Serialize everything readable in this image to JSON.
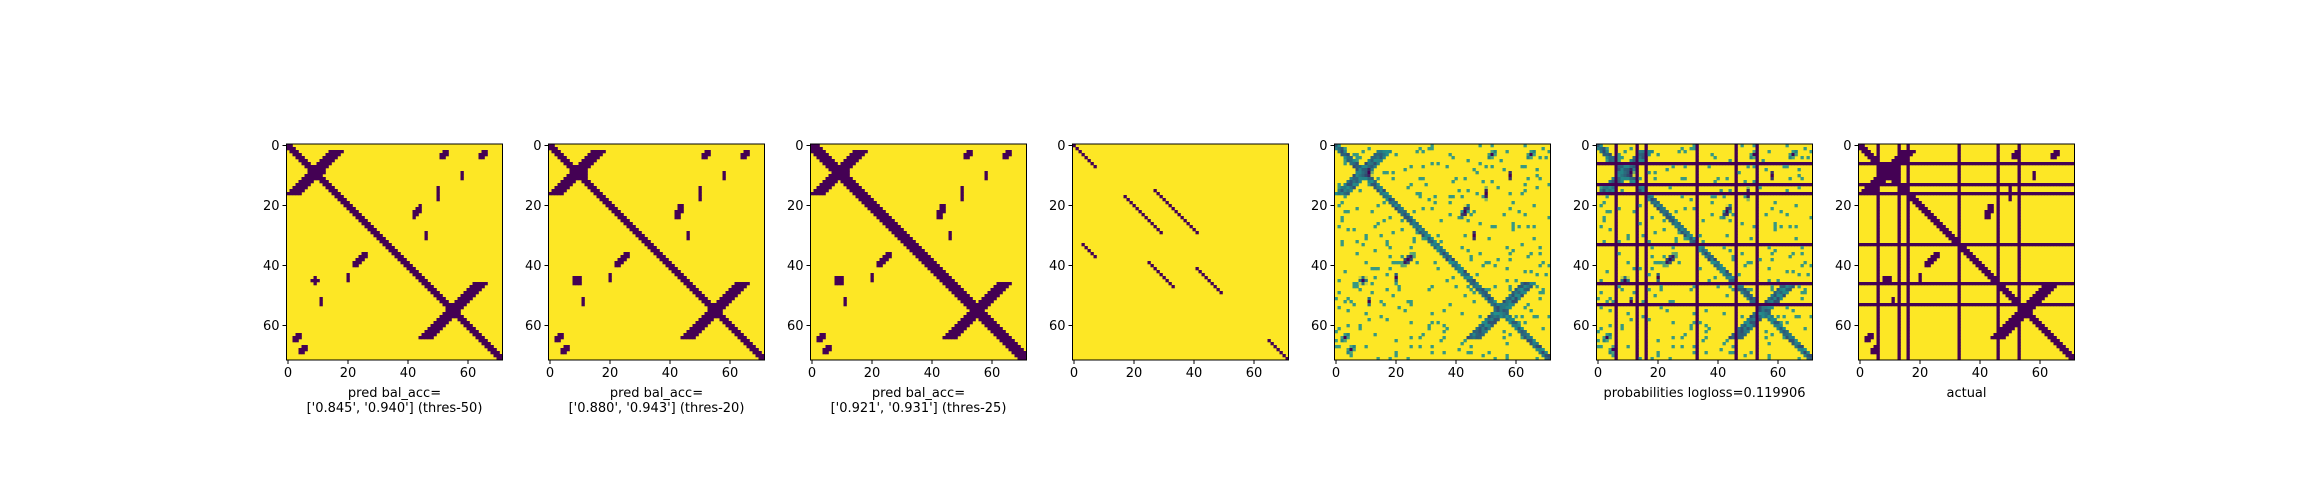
{
  "colors": {
    "low": "#440154",
    "mid": "#21908c",
    "high": "#fde725",
    "axis": "#000000"
  },
  "chart_data": [
    {
      "type": "heatmap",
      "map": "contact_threshold",
      "title": "",
      "caption": [
        "pred bal_acc=",
        "['0.845', '0.940'] (thres-50)"
      ],
      "xticks": [
        "0",
        "20",
        "40",
        "60"
      ],
      "yticks": [
        "0",
        "20",
        "40",
        "60"
      ],
      "xlim": [
        0,
        72
      ],
      "ylim": [
        72,
        0
      ],
      "grid": false
    },
    {
      "type": "heatmap",
      "map": "contact_threshold_low",
      "title": "",
      "caption": [
        "pred bal_acc=",
        "['0.880', '0.943'] (thres-20)"
      ],
      "xticks": [
        "0",
        "20",
        "40",
        "60"
      ],
      "yticks": [
        "0",
        "20",
        "40",
        "60"
      ],
      "xlim": [
        0,
        72
      ],
      "ylim": [
        72,
        0
      ],
      "grid": false
    },
    {
      "type": "heatmap",
      "map": "contact_threshold_mid",
      "title": "",
      "caption": [
        "pred bal_acc=",
        "['0.921', '0.931'] (thres-25)"
      ],
      "xticks": [
        "0",
        "20",
        "40",
        "60"
      ],
      "yticks": [
        "0",
        "20",
        "40",
        "60"
      ],
      "xlim": [
        0,
        72
      ],
      "ylim": [
        72,
        0
      ],
      "grid": false
    },
    {
      "type": "heatmap",
      "map": "sparse_diagonal",
      "title": "",
      "caption": [],
      "xticks": [
        "0",
        "20",
        "40",
        "60"
      ],
      "yticks": [
        "0",
        "20",
        "40",
        "60"
      ],
      "xlim": [
        0,
        72
      ],
      "ylim": [
        72,
        0
      ],
      "grid": false
    },
    {
      "type": "heatmap",
      "map": "probabilities",
      "title": "",
      "caption": [],
      "xticks": [
        "0",
        "20",
        "40",
        "60"
      ],
      "yticks": [
        "0",
        "20",
        "40",
        "60"
      ],
      "xlim": [
        0,
        72
      ],
      "ylim": [
        72,
        0
      ],
      "grid": false
    },
    {
      "type": "heatmap",
      "map": "probabilities_masked",
      "title": "",
      "caption": [
        "probabilities logloss=0.119906"
      ],
      "xticks": [
        "0",
        "20",
        "40",
        "60"
      ],
      "yticks": [
        "0",
        "20",
        "40",
        "60"
      ],
      "xlim": [
        0,
        72
      ],
      "ylim": [
        72,
        0
      ],
      "grid": false
    },
    {
      "type": "heatmap",
      "map": "actual_masked",
      "title": "",
      "caption": [
        "actual"
      ],
      "xticks": [
        "0",
        "20",
        "40",
        "60"
      ],
      "yticks": [
        "0",
        "20",
        "40",
        "60"
      ],
      "xlim": [
        0,
        72
      ],
      "ylim": [
        72,
        0
      ],
      "grid": false
    }
  ]
}
